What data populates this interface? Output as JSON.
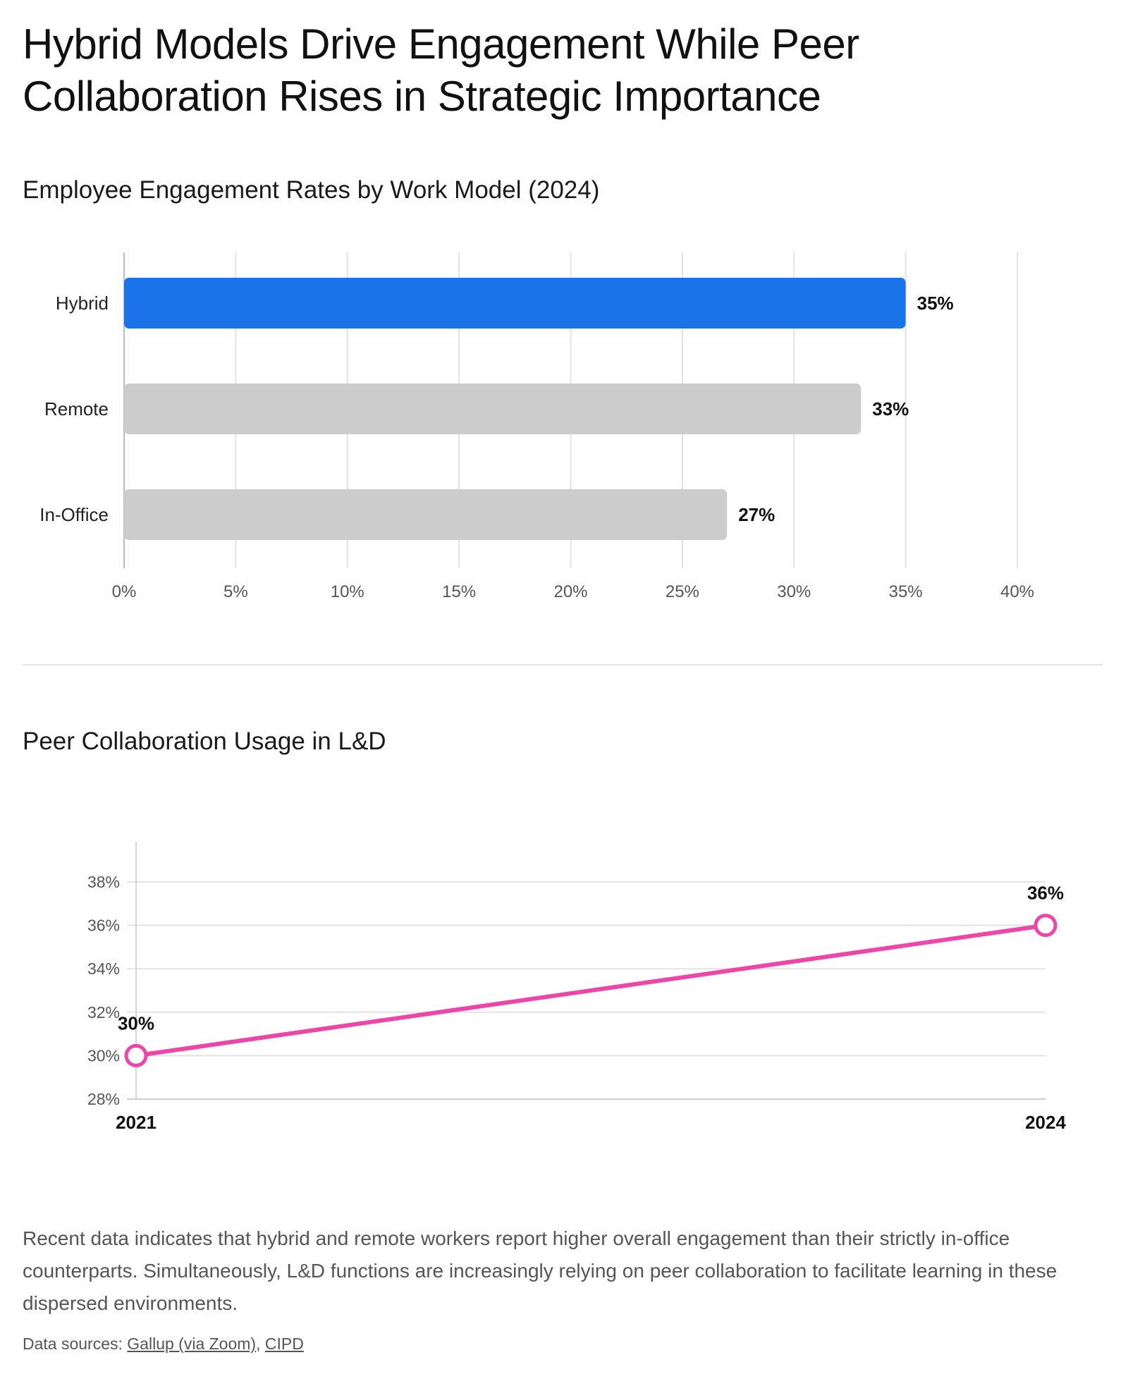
{
  "title": "Hybrid Models Drive Engagement While Peer Collaboration Rises in Strategic Importance",
  "chart_data": [
    {
      "type": "bar",
      "orientation": "horizontal",
      "title": "Employee Engagement Rates by Work Model (2024)",
      "categories": [
        "Hybrid",
        "Remote",
        "In-Office"
      ],
      "values": [
        35,
        33,
        27
      ],
      "value_labels": [
        "35%",
        "33%",
        "27%"
      ],
      "bar_colors": [
        "#1a73e8",
        "#cccccc",
        "#cccccc"
      ],
      "xlim": [
        0,
        40
      ],
      "xticks": [
        0,
        5,
        10,
        15,
        20,
        25,
        30,
        35,
        40
      ],
      "xtick_labels": [
        "0%",
        "5%",
        "10%",
        "15%",
        "20%",
        "25%",
        "30%",
        "35%",
        "40%"
      ],
      "grid": true,
      "gridline_color": "#e3e3e3"
    },
    {
      "type": "line",
      "title": "Peer Collaboration Usage in L&D",
      "x": [
        "2021",
        "2024"
      ],
      "series": [
        {
          "values": [
            30,
            36
          ],
          "labels": [
            "30%",
            "36%"
          ],
          "color": "#ef44a8"
        }
      ],
      "ylim": [
        28,
        38
      ],
      "yticks": [
        28,
        30,
        32,
        34,
        36,
        38
      ],
      "ytick_labels": [
        "28%",
        "30%",
        "32%",
        "34%",
        "36%",
        "38%"
      ],
      "grid": true
    }
  ],
  "description": "Recent data indicates that hybrid and remote workers report higher overall engagement than their strictly in-office counterparts. Simultaneously, L&D functions are increasingly relying on peer collaboration to facilitate learning in these dispersed environments.",
  "sources": {
    "prefix": "Data sources: ",
    "links": [
      {
        "label": "Gallup (via Zoom)"
      },
      {
        "label": "CIPD"
      }
    ]
  }
}
